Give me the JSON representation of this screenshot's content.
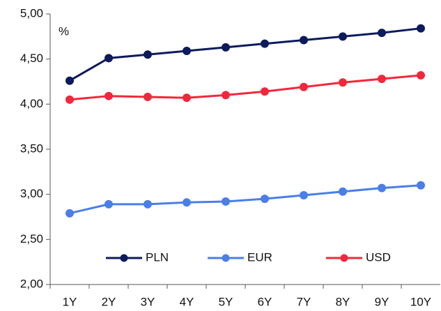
{
  "chart_data": {
    "type": "line",
    "annotation": "%",
    "categories": [
      "1Y",
      "2Y",
      "3Y",
      "4Y",
      "5Y",
      "6Y",
      "7Y",
      "8Y",
      "9Y",
      "10Y"
    ],
    "series": [
      {
        "name": "PLN",
        "color": "#0d1a5c",
        "values": [
          4.26,
          4.51,
          4.55,
          4.59,
          4.63,
          4.67,
          4.71,
          4.75,
          4.79,
          4.84
        ]
      },
      {
        "name": "EUR",
        "color": "#4a7ee8",
        "values": [
          2.79,
          2.89,
          2.89,
          2.91,
          2.92,
          2.95,
          2.99,
          3.03,
          3.07,
          3.1
        ]
      },
      {
        "name": "USD",
        "color": "#f0283c",
        "values": [
          4.05,
          4.09,
          4.08,
          4.07,
          4.1,
          4.14,
          4.19,
          4.24,
          4.28,
          4.32
        ]
      }
    ],
    "ylim": [
      2,
      5
    ],
    "yticks": [
      {
        "value": 2,
        "label": "2,00"
      },
      {
        "value": 2.5,
        "label": "2,50"
      },
      {
        "value": 3,
        "label": "3,00"
      },
      {
        "value": 3.5,
        "label": "3,50"
      },
      {
        "value": 4,
        "label": "4,00"
      },
      {
        "value": 4.5,
        "label": "4,50"
      },
      {
        "value": 5,
        "label": "5,00"
      }
    ],
    "legend": "bottom"
  }
}
